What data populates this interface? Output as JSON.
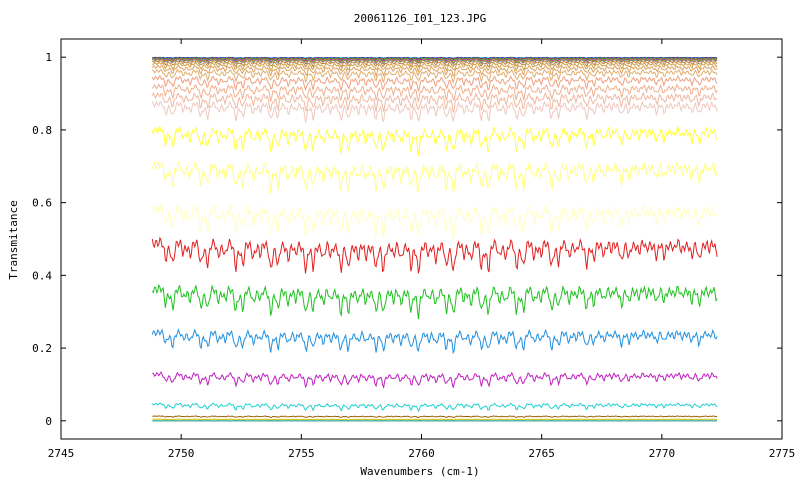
{
  "chart_data": {
    "type": "line",
    "title": "20061126_I01_123.JPG",
    "xlabel": "Wavenumbers (cm-1)",
    "ylabel": "Transmitance",
    "xlim": [
      2745,
      2775
    ],
    "ylim": [
      -0.05,
      1.05
    ],
    "x_ticks": [
      2745,
      2750,
      2755,
      2760,
      2765,
      2770,
      2775
    ],
    "y_ticks": [
      0,
      0.2,
      0.4,
      0.6,
      0.8,
      1
    ],
    "y_tick_labels": [
      "0",
      "0.2",
      "0.4",
      "0.6",
      "0.8",
      "1"
    ],
    "grid": false,
    "legend": "none",
    "x_range_data": [
      2748.8,
      2772.3
    ],
    "series": [
      {
        "color": "#00a0a0",
        "baseline": 0.999,
        "depth": 0.002
      },
      {
        "color": "#2020ff",
        "baseline": 0.998,
        "depth": 0.003
      },
      {
        "color": "#ff2020",
        "baseline": 0.997,
        "depth": 0.004
      },
      {
        "color": "#20c020",
        "baseline": 0.996,
        "depth": 0.005
      },
      {
        "color": "#c020c0",
        "baseline": 0.994,
        "depth": 0.007
      },
      {
        "color": "#a0a000",
        "baseline": 0.992,
        "depth": 0.009
      },
      {
        "color": "#808080",
        "baseline": 0.99,
        "depth": 0.011
      },
      {
        "color": "#c08040",
        "baseline": 0.985,
        "depth": 0.015
      },
      {
        "color": "#d0a040",
        "baseline": 0.978,
        "depth": 0.02
      },
      {
        "color": "#e0a060",
        "baseline": 0.968,
        "depth": 0.025
      },
      {
        "color": "#e0b070",
        "baseline": 0.955,
        "depth": 0.03
      },
      {
        "color": "#f0a080",
        "baseline": 0.935,
        "depth": 0.035
      },
      {
        "color": "#f0b090",
        "baseline": 0.91,
        "depth": 0.04
      },
      {
        "color": "#f0b8a0",
        "baseline": 0.885,
        "depth": 0.045
      },
      {
        "color": "#f0c8c0",
        "baseline": 0.86,
        "depth": 0.05
      },
      {
        "color": "#ffff40",
        "baseline": 0.785,
        "depth": 0.065
      },
      {
        "color": "#ffff80",
        "baseline": 0.685,
        "depth": 0.075
      },
      {
        "color": "#ffffc0",
        "baseline": 0.565,
        "depth": 0.08
      },
      {
        "color": "#e02020",
        "baseline": 0.47,
        "depth": 0.085
      },
      {
        "color": "#20c020",
        "baseline": 0.345,
        "depth": 0.075
      },
      {
        "color": "#2090e0",
        "baseline": 0.23,
        "depth": 0.055
      },
      {
        "color": "#c020c0",
        "baseline": 0.12,
        "depth": 0.035
      },
      {
        "color": "#20d0d0",
        "baseline": 0.042,
        "depth": 0.018
      },
      {
        "color": "#a06000",
        "baseline": 0.012,
        "depth": 0.004
      },
      {
        "color": "#d0c000",
        "baseline": 0.004,
        "depth": 0.002
      },
      {
        "color": "#009090",
        "baseline": 0.0,
        "depth": 0.0
      }
    ]
  }
}
